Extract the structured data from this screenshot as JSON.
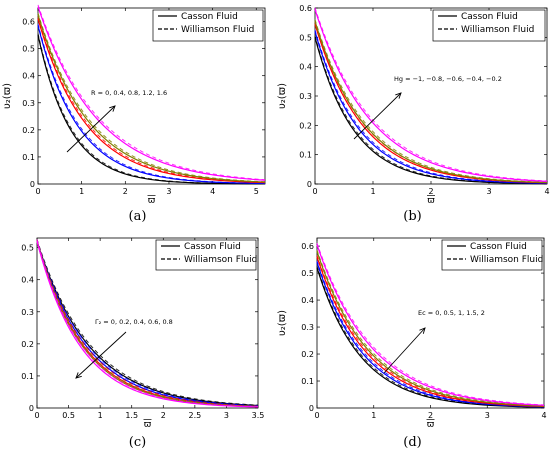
{
  "chart_data": [
    {
      "id": "a",
      "type": "line",
      "caption": "(a)",
      "xlabel": "ϖ",
      "ylabel": "υ₂(ϖ)",
      "xlim": [
        0,
        5.2
      ],
      "ylim": [
        0,
        0.65
      ],
      "xticks": [
        0,
        1,
        2,
        3,
        4,
        5
      ],
      "yticks": [
        0,
        0.1,
        0.2,
        0.3,
        0.4,
        0.5,
        0.6
      ],
      "legend": {
        "placement": "top-right",
        "entries": [
          {
            "label": "Casson Fluid",
            "style": "solid"
          },
          {
            "label": "Williamson Fluid",
            "style": "dashed"
          }
        ]
      },
      "annotation": {
        "text": "R = 0, 0.4, 0.8, 1.2, 1.6",
        "arrow": "up-right"
      },
      "series": [
        {
          "color": "#000000",
          "y0": 0.55,
          "k": 1.35
        },
        {
          "color": "#0000ff",
          "y0": 0.585,
          "k": 1.1
        },
        {
          "color": "#ff0000",
          "y0": 0.61,
          "k": 0.92
        },
        {
          "color": "#808000",
          "y0": 0.625,
          "k": 0.86
        },
        {
          "color": "#ff00ff",
          "y0": 0.655,
          "k": 0.74
        }
      ]
    },
    {
      "id": "b",
      "type": "line",
      "caption": "(b)",
      "xlabel": "ϖ",
      "ylabel": "υ₂(ϖ)",
      "xlim": [
        0,
        4
      ],
      "ylim": [
        0,
        0.6
      ],
      "xticks": [
        0,
        1,
        2,
        3,
        4
      ],
      "yticks": [
        0,
        0.1,
        0.2,
        0.3,
        0.4,
        0.5,
        0.6
      ],
      "legend": {
        "placement": "top-right",
        "entries": [
          {
            "label": "Casson Fluid",
            "style": "solid"
          },
          {
            "label": "Williamson Fluid",
            "style": "dashed"
          }
        ]
      },
      "annotation": {
        "text": "Hg = −1, −0.8, −0.6, −0.4, −0.2",
        "arrow": "up-right"
      },
      "series": [
        {
          "color": "#000000",
          "y0": 0.5,
          "k": 1.5
        },
        {
          "color": "#0000ff",
          "y0": 0.52,
          "k": 1.35
        },
        {
          "color": "#ff0000",
          "y0": 0.545,
          "k": 1.22
        },
        {
          "color": "#808000",
          "y0": 0.555,
          "k": 1.18
        },
        {
          "color": "#ff00ff",
          "y0": 0.595,
          "k": 1.05
        }
      ]
    },
    {
      "id": "c",
      "type": "line",
      "caption": "(c)",
      "xlabel": "ϖ",
      "ylabel": "",
      "xlim": [
        0,
        3.5
      ],
      "ylim": [
        0,
        0.53
      ],
      "xticks": [
        0,
        0.5,
        1,
        1.5,
        2,
        2.5,
        3,
        3.5
      ],
      "yticks": [
        0,
        0.1,
        0.2,
        0.3,
        0.4,
        0.5
      ],
      "legend": {
        "placement": "top-right",
        "entries": [
          {
            "label": "Casson Fluid",
            "style": "solid"
          },
          {
            "label": "Williamson Fluid",
            "style": "dashed"
          }
        ]
      },
      "annotation": {
        "text": "Γ₂ = 0, 0.2, 0.4, 0.6, 0.8",
        "arrow": "down-left"
      },
      "series": [
        {
          "color": "#000000",
          "y0": 0.52,
          "k": 1.2
        },
        {
          "color": "#0000ff",
          "y0": 0.52,
          "k": 1.27
        },
        {
          "color": "#ff0000",
          "y0": 0.52,
          "k": 1.34
        },
        {
          "color": "#808000",
          "y0": 0.52,
          "k": 1.38
        },
        {
          "color": "#ff00ff",
          "y0": 0.52,
          "k": 1.45
        }
      ]
    },
    {
      "id": "d",
      "type": "line",
      "caption": "(d)",
      "xlabel": "ϖ",
      "ylabel": "υ₂(ϖ)",
      "xlim": [
        0,
        4
      ],
      "ylim": [
        0,
        0.63
      ],
      "xticks": [
        0,
        1,
        2,
        3,
        4
      ],
      "yticks": [
        0,
        0.1,
        0.2,
        0.3,
        0.4,
        0.5,
        0.6
      ],
      "legend": {
        "placement": "top-right",
        "entries": [
          {
            "label": "Casson Fluid",
            "style": "solid"
          },
          {
            "label": "Williamson Fluid",
            "style": "dashed"
          }
        ]
      },
      "annotation": {
        "text": "Ec = 0, 0.5, 1, 1.5, 2",
        "arrow": "up-right"
      },
      "series": [
        {
          "color": "#000000",
          "y0": 0.52,
          "k": 1.3
        },
        {
          "color": "#0000ff",
          "y0": 0.54,
          "k": 1.22
        },
        {
          "color": "#ff0000",
          "y0": 0.56,
          "k": 1.15
        },
        {
          "color": "#808000",
          "y0": 0.58,
          "k": 1.1
        },
        {
          "color": "#ff00ff",
          "y0": 0.605,
          "k": 1.03
        }
      ]
    }
  ]
}
